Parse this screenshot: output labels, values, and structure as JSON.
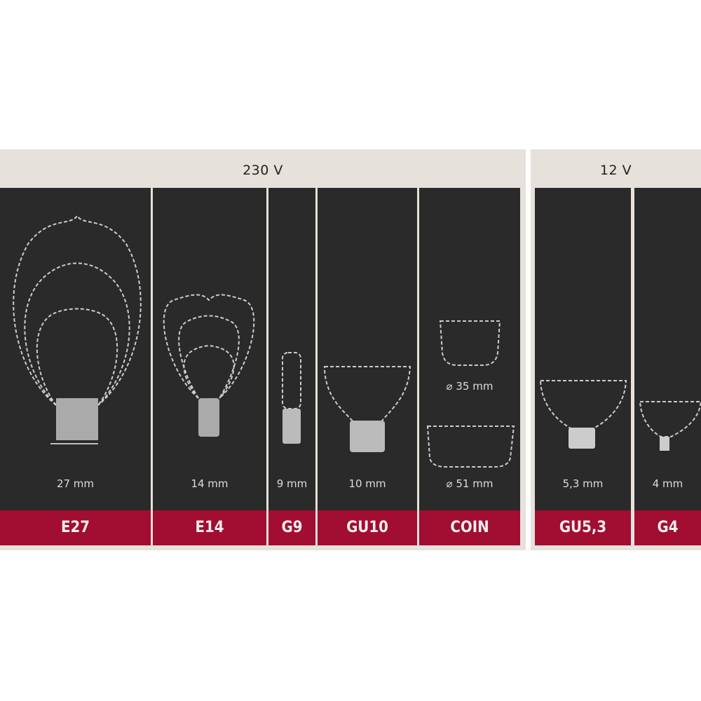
{
  "groups": [
    {
      "voltage": "230 V"
    },
    {
      "voltage": "12 V"
    }
  ],
  "sockets": [
    {
      "name": "E27",
      "size": "27 mm"
    },
    {
      "name": "E14",
      "size": "14 mm"
    },
    {
      "name": "G9",
      "size": "9 mm"
    },
    {
      "name": "GU10",
      "size": "10 mm"
    },
    {
      "name": "COIN",
      "size": "⌀ 51 mm",
      "size_small": "⌀ 35 mm"
    },
    {
      "name": "GU5,3",
      "size": "5,3 mm"
    },
    {
      "name": "G4",
      "size": "4 mm"
    }
  ],
  "colors": {
    "panel": "#2a2a2a",
    "label_bar": "#a20d32",
    "background": "#e6e1da"
  }
}
